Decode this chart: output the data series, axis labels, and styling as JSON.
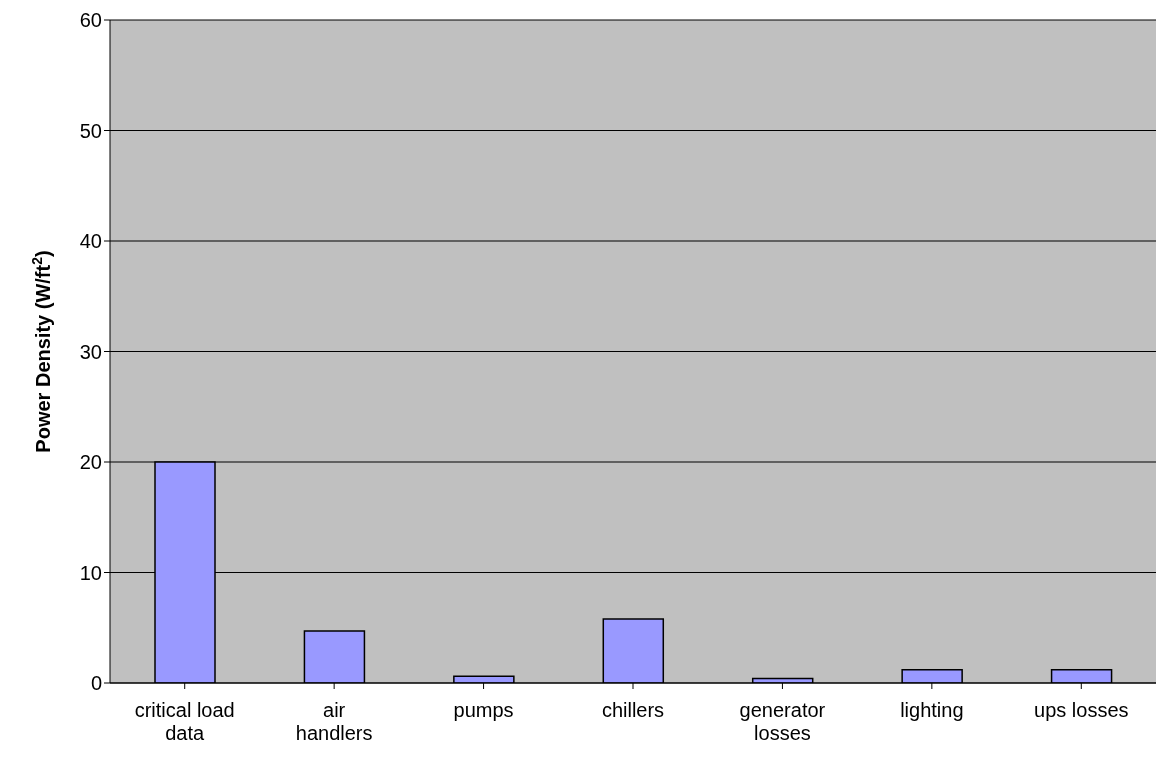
{
  "chart_data": {
    "type": "bar",
    "ylabel": "Power Density (W/ft$^{2}$)",
    "categories": [
      "critical load data",
      "air handlers",
      "pumps",
      "chillers",
      "generator losses",
      "lighting",
      "ups losses"
    ],
    "values": [
      20,
      4.7,
      0.6,
      5.8,
      0.4,
      1.2,
      1.2
    ],
    "color": "#9999ff",
    "ylim": [
      0,
      60
    ],
    "yticks": [
      0,
      10,
      20,
      30,
      40,
      50,
      60
    ],
    "grid": "y",
    "legend": false
  }
}
